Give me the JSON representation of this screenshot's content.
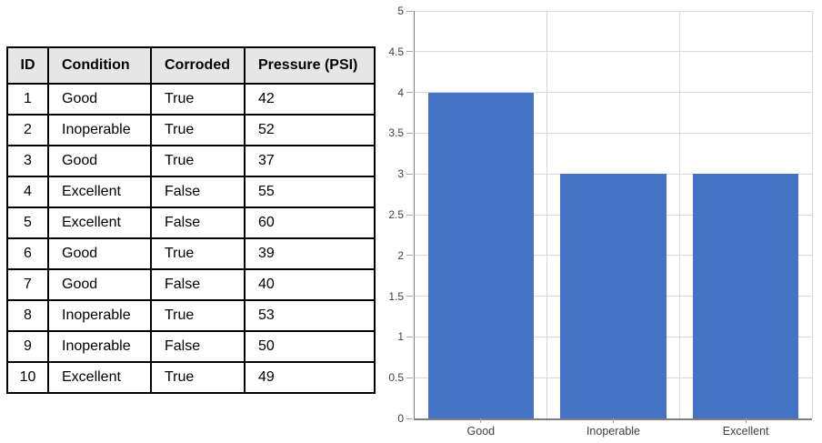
{
  "table": {
    "columns": [
      "ID",
      "Condition",
      "Corroded",
      "Pressure (PSI)"
    ],
    "rows": [
      [
        "1",
        "Good",
        "True",
        "42"
      ],
      [
        "2",
        "Inoperable",
        "True",
        "52"
      ],
      [
        "3",
        "Good",
        "True",
        "37"
      ],
      [
        "4",
        "Excellent",
        "False",
        "55"
      ],
      [
        "5",
        "Excellent",
        "False",
        "60"
      ],
      [
        "6",
        "Good",
        "True",
        "39"
      ],
      [
        "7",
        "Good",
        "False",
        "40"
      ],
      [
        "8",
        "Inoperable",
        "True",
        "53"
      ],
      [
        "9",
        "Inoperable",
        "False",
        "50"
      ],
      [
        "10",
        "Excellent",
        "True",
        "49"
      ]
    ],
    "header_bg": "#e7e6e6",
    "border_color": "#000000"
  },
  "chart_data": {
    "type": "bar",
    "categories": [
      "Good",
      "Inoperable",
      "Excellent"
    ],
    "values": [
      4,
      3,
      3
    ],
    "title": "",
    "xlabel": "",
    "ylabel": "",
    "ylim": [
      0,
      5
    ],
    "ytick_step": 0.5,
    "ytick_labels": [
      "0",
      "0.5",
      "1",
      "1.5",
      "2",
      "2.5",
      "3",
      "3.5",
      "4",
      "4.5",
      "5"
    ],
    "grid": true,
    "legend_position": "none",
    "bar_color": "#4472c4",
    "gridline_color": "#d9d9d9",
    "axis_color": "#7f7f7f",
    "tick_color": "#a6a6a6",
    "label_color": "#404040"
  }
}
